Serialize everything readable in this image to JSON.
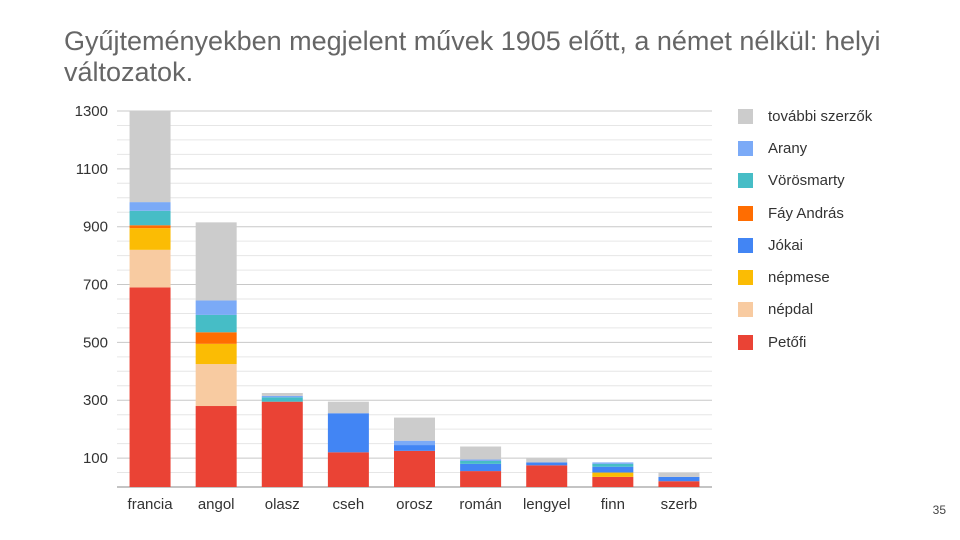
{
  "title": "Gyűjteményekben megjelent művek 1905 előtt, a német nélkül: helyi változatok.",
  "page_number": "35",
  "chart_data": {
    "type": "bar",
    "stacked": true,
    "title": "Gyűjteményekben megjelent művek 1905 előtt, a német nélkül: helyi változatok.",
    "xlabel": "",
    "ylabel": "",
    "ylim": [
      0,
      1300
    ],
    "yticks": [
      100,
      300,
      500,
      700,
      900,
      1100,
      1300
    ],
    "grid": true,
    "legend_position": "right",
    "categories": [
      "francia",
      "angol",
      "olasz",
      "cseh",
      "orosz",
      "román",
      "lengyel",
      "finn",
      "szerb"
    ],
    "series": [
      {
        "name": "Petőfi",
        "color": "#ea4335",
        "values": [
          690,
          280,
          295,
          120,
          125,
          55,
          75,
          35,
          20
        ]
      },
      {
        "name": "népdal",
        "color": "#f8cba1",
        "values": [
          130,
          145,
          0,
          0,
          0,
          0,
          0,
          0,
          0
        ]
      },
      {
        "name": "népmese",
        "color": "#fbbc04",
        "values": [
          75,
          70,
          0,
          0,
          0,
          0,
          0,
          15,
          0
        ]
      },
      {
        "name": "Jókai",
        "color": "#4285f4",
        "values": [
          0,
          0,
          0,
          135,
          20,
          25,
          10,
          20,
          15
        ]
      },
      {
        "name": "Fáy András",
        "color": "#ff6d01",
        "values": [
          10,
          40,
          0,
          0,
          0,
          0,
          0,
          0,
          0
        ]
      },
      {
        "name": "Vörösmarty",
        "color": "#46bdc6",
        "values": [
          50,
          60,
          15,
          0,
          0,
          10,
          0,
          10,
          0
        ]
      },
      {
        "name": "Arany",
        "color": "#7baaf7",
        "values": [
          30,
          50,
          5,
          0,
          15,
          5,
          0,
          5,
          0
        ]
      },
      {
        "name": "további szerzők",
        "color": "#cccccc",
        "values": [
          315,
          270,
          10,
          40,
          80,
          45,
          15,
          0,
          15
        ]
      }
    ],
    "legend_order": [
      "további szerzők",
      "Arany",
      "Vörösmarty",
      "Fáy András",
      "Jókai",
      "népmese",
      "népdal",
      "Petőfi"
    ]
  }
}
